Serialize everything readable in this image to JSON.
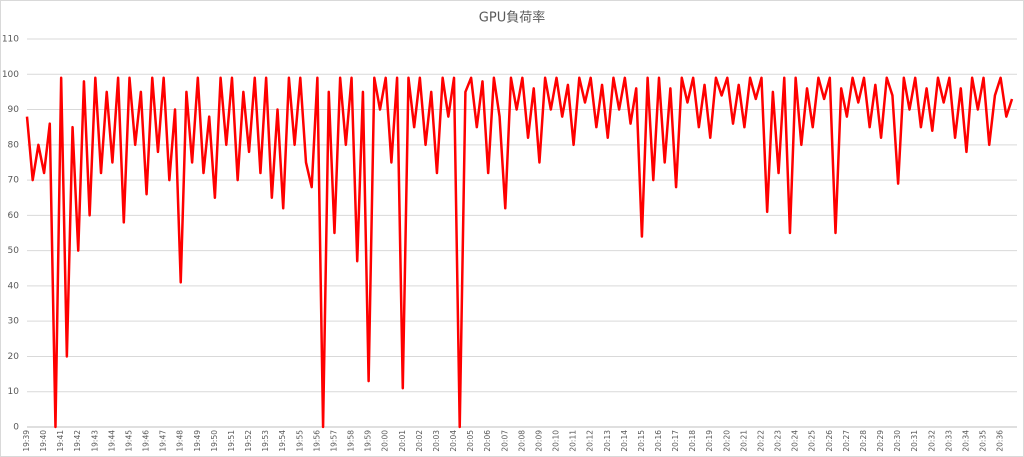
{
  "chart_data": {
    "type": "line",
    "title": "GPU負荷率",
    "color": "#ff0000",
    "grid": true,
    "ylim": [
      0,
      110
    ],
    "yticks": [
      0,
      10,
      20,
      30,
      40,
      50,
      60,
      70,
      80,
      90,
      100,
      110
    ],
    "categories": [
      "19:39",
      null,
      null,
      "19:40",
      null,
      null,
      "19:41",
      null,
      null,
      "19:42",
      null,
      null,
      "19:43",
      null,
      null,
      "19:44",
      null,
      null,
      "19:45",
      null,
      null,
      "19:46",
      null,
      null,
      "19:47",
      null,
      null,
      "19:48",
      null,
      null,
      "19:49",
      null,
      null,
      "19:50",
      null,
      null,
      "19:51",
      null,
      null,
      "19:52",
      null,
      null,
      "19:53",
      null,
      null,
      "19:54",
      null,
      null,
      "19:55",
      null,
      null,
      "19:56",
      null,
      null,
      "19:57",
      null,
      null,
      "19:58",
      null,
      null,
      "19:59",
      null,
      null,
      "20:00",
      null,
      null,
      "20:01",
      null,
      null,
      "20:02",
      null,
      null,
      "20:03",
      null,
      null,
      "20:04",
      null,
      null,
      "20:05",
      null,
      null,
      "20:06",
      null,
      null,
      "20:07",
      null,
      null,
      "20:08",
      null,
      null,
      "20:09",
      null,
      null,
      "20:10",
      null,
      null,
      "20:11",
      null,
      null,
      "20:12",
      null,
      null,
      "20:13",
      null,
      null,
      "20:14",
      null,
      null,
      "20:15",
      null,
      null,
      "20:16",
      null,
      null,
      "20:17",
      null,
      null,
      "20:18",
      null,
      null,
      "20:19",
      null,
      null,
      "20:20",
      null,
      null,
      "20:21",
      null,
      null,
      "20:22",
      null,
      null,
      "20:23",
      null,
      null,
      "20:24",
      null,
      null,
      "20:25",
      null,
      null,
      "20:26",
      null,
      null,
      "20:27",
      null,
      null,
      "20:28",
      null,
      null,
      "20:29",
      null,
      null,
      "20:30",
      null,
      null,
      "20:31",
      null,
      null,
      "20:32",
      null,
      null,
      "20:33",
      null,
      null,
      "20:34",
      null,
      null,
      "20:35",
      null,
      null,
      "20:36",
      null,
      null
    ],
    "values": [
      88,
      70,
      80,
      72,
      86,
      0,
      99,
      20,
      85,
      50,
      98,
      60,
      99,
      72,
      95,
      75,
      99,
      58,
      99,
      80,
      95,
      66,
      99,
      78,
      99,
      70,
      90,
      41,
      95,
      75,
      99,
      72,
      88,
      65,
      99,
      80,
      99,
      70,
      95,
      78,
      99,
      72,
      99,
      65,
      90,
      62,
      99,
      80,
      99,
      75,
      68,
      99,
      0,
      95,
      55,
      99,
      80,
      99,
      47,
      95,
      13,
      99,
      90,
      99,
      75,
      99,
      11,
      99,
      85,
      99,
      80,
      95,
      72,
      99,
      88,
      99,
      0,
      95,
      99,
      85,
      98,
      72,
      99,
      88,
      62,
      99,
      90,
      99,
      82,
      96,
      75,
      99,
      90,
      99,
      88,
      97,
      80,
      99,
      92,
      99,
      85,
      97,
      82,
      99,
      90,
      99,
      86,
      96,
      54,
      99,
      70,
      99,
      75,
      96,
      68,
      99,
      92,
      99,
      85,
      97,
      82,
      99,
      94,
      99,
      86,
      97,
      85,
      99,
      93,
      99,
      61,
      95,
      72,
      99,
      55,
      99,
      80,
      96,
      85,
      99,
      93,
      99,
      55,
      96,
      88,
      99,
      92,
      99,
      85,
      97,
      82,
      99,
      94,
      69,
      99,
      90,
      99,
      85,
      96,
      84,
      99,
      92,
      99,
      82,
      96,
      78,
      99,
      90,
      99,
      80,
      94,
      99,
      88,
      93
    ]
  }
}
